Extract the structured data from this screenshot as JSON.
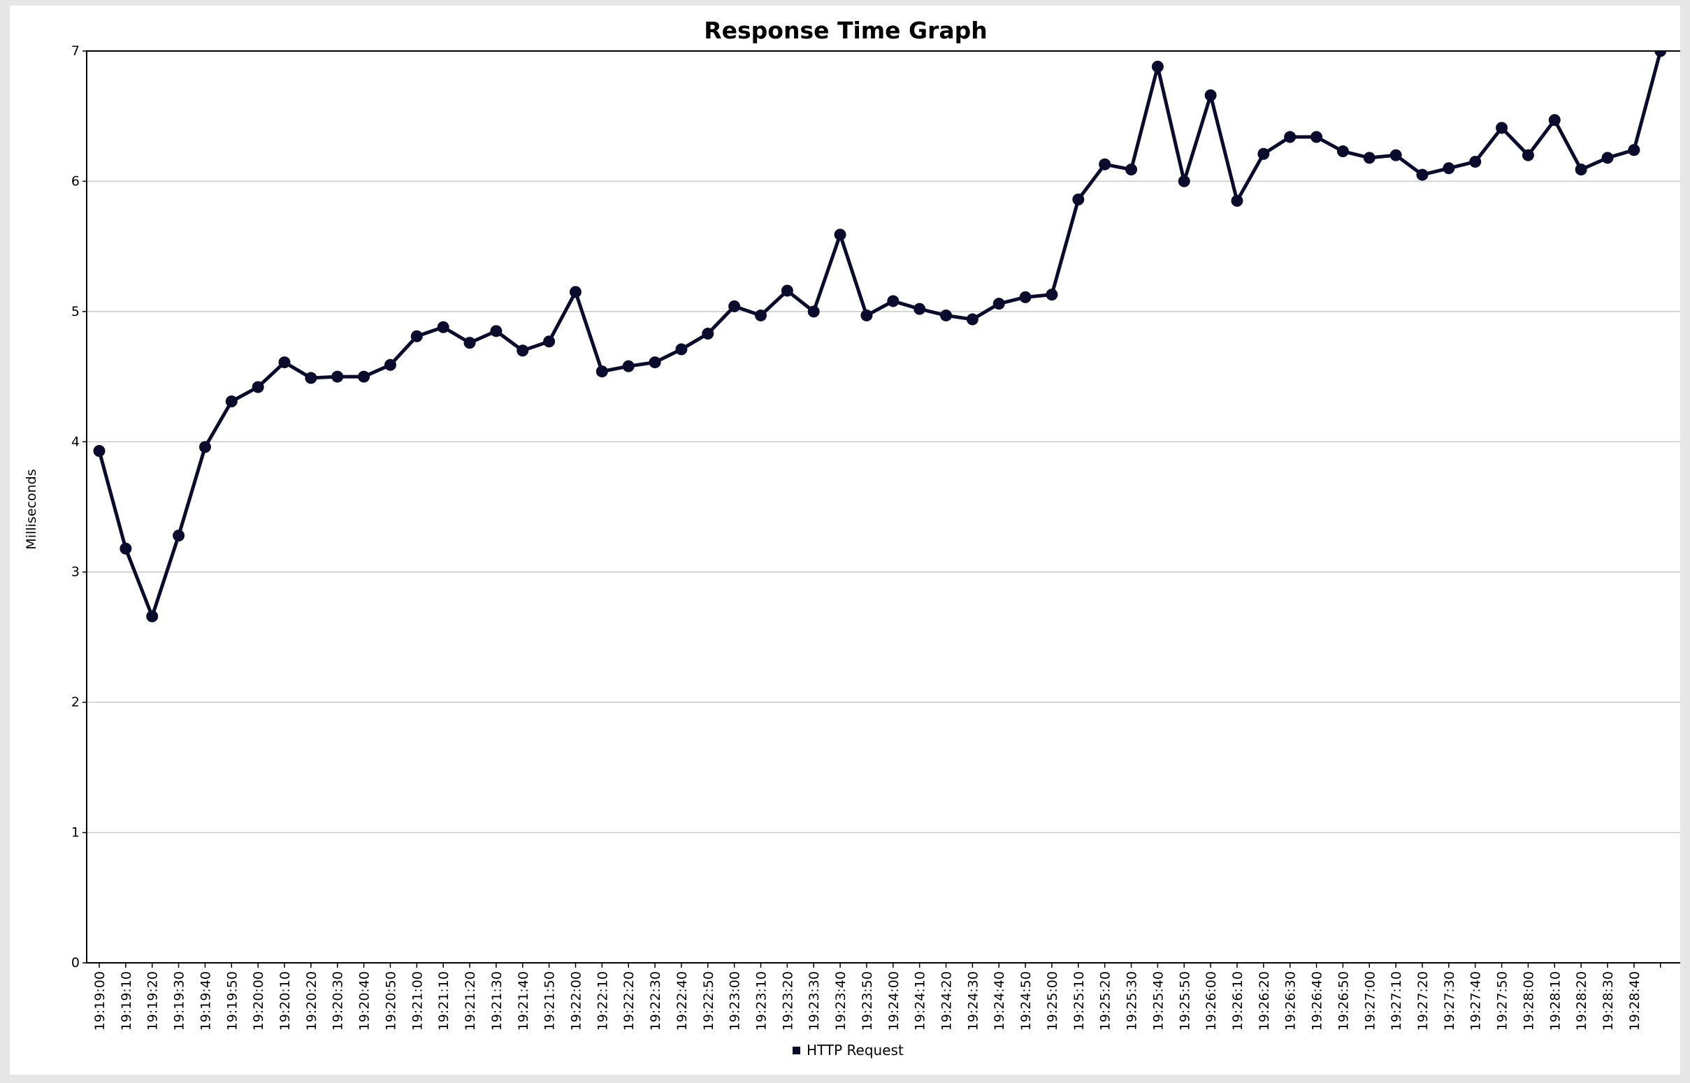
{
  "chart_data": {
    "type": "line",
    "title": "Response Time Graph",
    "xlabel": "",
    "ylabel": "Milliseconds",
    "ylim": [
      0,
      7
    ],
    "y_ticks": [
      "0",
      "1",
      "2",
      "3",
      "4",
      "5",
      "6",
      "7"
    ],
    "grid": "horizontal",
    "legend_position": "bottom",
    "x_ticks": [
      "19:19:00",
      "19:19:10",
      "19:19:20",
      "19:19:30",
      "19:19:40",
      "19:19:50",
      "19:20:00",
      "19:20:10",
      "19:20:20",
      "19:20:30",
      "19:20:40",
      "19:20:50",
      "19:21:00",
      "19:21:10",
      "19:21:20",
      "19:21:30",
      "19:21:40",
      "19:21:50",
      "19:22:00",
      "19:22:10",
      "19:22:20",
      "19:22:30",
      "19:22:40",
      "19:22:50",
      "19:23:00",
      "19:23:10",
      "19:23:20",
      "19:23:30",
      "19:23:40",
      "19:23:50",
      "19:24:00",
      "19:24:10",
      "19:24:20",
      "19:24:30",
      "19:24:40",
      "19:24:50",
      "19:25:00",
      "19:25:10",
      "19:25:20",
      "19:25:30",
      "19:25:40",
      "19:25:50",
      "19:26:00",
      "19:26:10",
      "19:26:20",
      "19:26:30",
      "19:26:40",
      "19:26:50",
      "19:27:00",
      "19:27:10",
      "19:27:20",
      "19:27:30",
      "19:27:40",
      "19:27:50",
      "19:28:00",
      "19:28:10",
      "19:28:20",
      "19:28:30",
      "19:28:40"
    ],
    "series": [
      {
        "name": "HTTP Request",
        "color": "#0b0b2e",
        "x": [
          "19:19:00",
          "19:19:10",
          "19:19:20",
          "19:19:30",
          "19:19:40",
          "19:19:50",
          "19:20:00",
          "19:20:10",
          "19:20:20",
          "19:20:30",
          "19:20:40",
          "19:20:50",
          "19:21:00",
          "19:21:10",
          "19:21:20",
          "19:21:30",
          "19:21:40",
          "19:21:50",
          "19:22:00",
          "19:22:10",
          "19:22:20",
          "19:22:30",
          "19:22:40",
          "19:22:50",
          "19:23:00",
          "19:23:10",
          "19:23:20",
          "19:23:30",
          "19:23:40",
          "19:23:50",
          "19:24:00",
          "19:24:10",
          "19:24:20",
          "19:24:30",
          "19:24:40",
          "19:24:50",
          "19:25:00",
          "19:25:10",
          "19:25:20",
          "19:25:30",
          "19:25:40",
          "19:25:50",
          "19:26:00",
          "19:26:10",
          "19:26:20",
          "19:26:30",
          "19:26:40",
          "19:26:50",
          "19:27:00",
          "19:27:10",
          "19:27:20",
          "19:27:30",
          "19:27:40",
          "19:27:50",
          "19:28:00",
          "19:28:10",
          "19:28:20",
          "19:28:30",
          "19:28:40",
          "19:28:50"
        ],
        "values": [
          3.93,
          3.18,
          2.66,
          3.28,
          3.96,
          4.31,
          4.42,
          4.61,
          4.49,
          4.5,
          4.5,
          4.59,
          4.81,
          4.88,
          4.76,
          4.85,
          4.7,
          4.77,
          5.15,
          4.54,
          4.58,
          4.61,
          4.71,
          4.83,
          5.04,
          4.97,
          5.16,
          5.0,
          5.59,
          4.97,
          5.08,
          5.02,
          4.97,
          4.94,
          5.06,
          5.11,
          5.13,
          5.86,
          6.13,
          6.09,
          6.88,
          6.0,
          6.66,
          5.85,
          6.21,
          6.34,
          6.34,
          6.23,
          6.18,
          6.2,
          6.05,
          6.1,
          6.15,
          6.41,
          6.2,
          6.47,
          6.09,
          6.18,
          6.24,
          7.0
        ]
      }
    ]
  }
}
